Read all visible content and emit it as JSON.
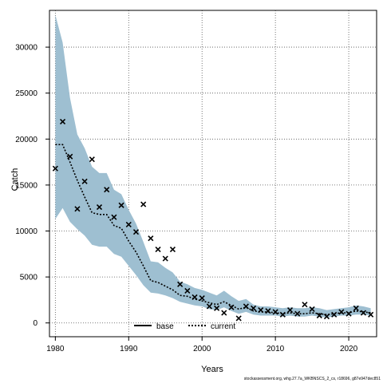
{
  "footer_text": "stockassessment.org, whg.27.7a_WKBNSCS_2_cs, r18696, g87e947dec851",
  "colors": {
    "band": "#9ebfd1",
    "line": "#000000",
    "grid": "#555555"
  },
  "chart_data": {
    "type": "line",
    "xlabel": "Years",
    "ylabel": "Catch",
    "xlim": [
      1979.2,
      2023.8
    ],
    "ylim": [
      -1500,
      34000
    ],
    "xticks": [
      1980,
      1990,
      2000,
      2010,
      2020
    ],
    "yticks": [
      0,
      5000,
      10000,
      15000,
      20000,
      25000,
      30000
    ],
    "grid": true,
    "legend": {
      "placement": "bottom-center",
      "entries": [
        {
          "label": "base",
          "style": "solid"
        },
        {
          "label": "current",
          "style": "dotted"
        }
      ]
    },
    "years": [
      1980,
      1981,
      1982,
      1983,
      1984,
      1985,
      1986,
      1987,
      1988,
      1989,
      1990,
      1991,
      1992,
      1993,
      1994,
      1995,
      1996,
      1997,
      1998,
      1999,
      2000,
      2001,
      2002,
      2003,
      2004,
      2005,
      2006,
      2007,
      2008,
      2009,
      2010,
      2011,
      2012,
      2013,
      2014,
      2015,
      2016,
      2017,
      2018,
      2019,
      2020,
      2021,
      2022,
      2023
    ],
    "estimate": [
      19400,
      19400,
      17500,
      15500,
      13700,
      12000,
      11800,
      11800,
      10600,
      10300,
      8900,
      7700,
      6200,
      4600,
      4400,
      4000,
      3600,
      3000,
      2900,
      2600,
      2400,
      2200,
      2000,
      2300,
      1900,
      1500,
      1700,
      1300,
      1200,
      1200,
      1100,
      1000,
      1100,
      1000,
      1000,
      1100,
      1000,
      900,
      1000,
      1100,
      1100,
      1300,
      1200,
      1100
    ],
    "lower": [
      11300,
      12500,
      11000,
      10200,
      9500,
      8500,
      8300,
      8300,
      7500,
      7200,
      6200,
      5200,
      4100,
      3300,
      3200,
      3000,
      2700,
      2300,
      2100,
      1900,
      1800,
      1500,
      1400,
      1700,
      1300,
      1000,
      1200,
      900,
      800,
      800,
      800,
      700,
      800,
      700,
      700,
      800,
      700,
      600,
      700,
      800,
      800,
      900,
      900,
      800
    ],
    "upper": [
      33500,
      30500,
      24500,
      20500,
      19000,
      17000,
      16300,
      16300,
      14500,
      14000,
      12300,
      10800,
      8800,
      6700,
      6600,
      6000,
      5500,
      4500,
      4200,
      3800,
      3600,
      3300,
      3000,
      3500,
      2900,
      2400,
      2600,
      2000,
      1800,
      1800,
      1700,
      1600,
      1700,
      1600,
      1600,
      1700,
      1600,
      1400,
      1500,
      1600,
      1700,
      1900,
      1800,
      1600
    ],
    "observed": [
      16800,
      21900,
      18100,
      12400,
      15400,
      17800,
      12600,
      14500,
      11500,
      12800,
      10700,
      9900,
      12900,
      9200,
      8000,
      7000,
      8000,
      4200,
      3500,
      2800,
      2700,
      1800,
      1600,
      1100,
      1700,
      500,
      1800,
      1600,
      1400,
      1300,
      1200,
      900,
      1400,
      1000,
      2000,
      1500,
      800,
      700,
      900,
      1200,
      1000,
      1600,
      1100,
      900
    ]
  }
}
